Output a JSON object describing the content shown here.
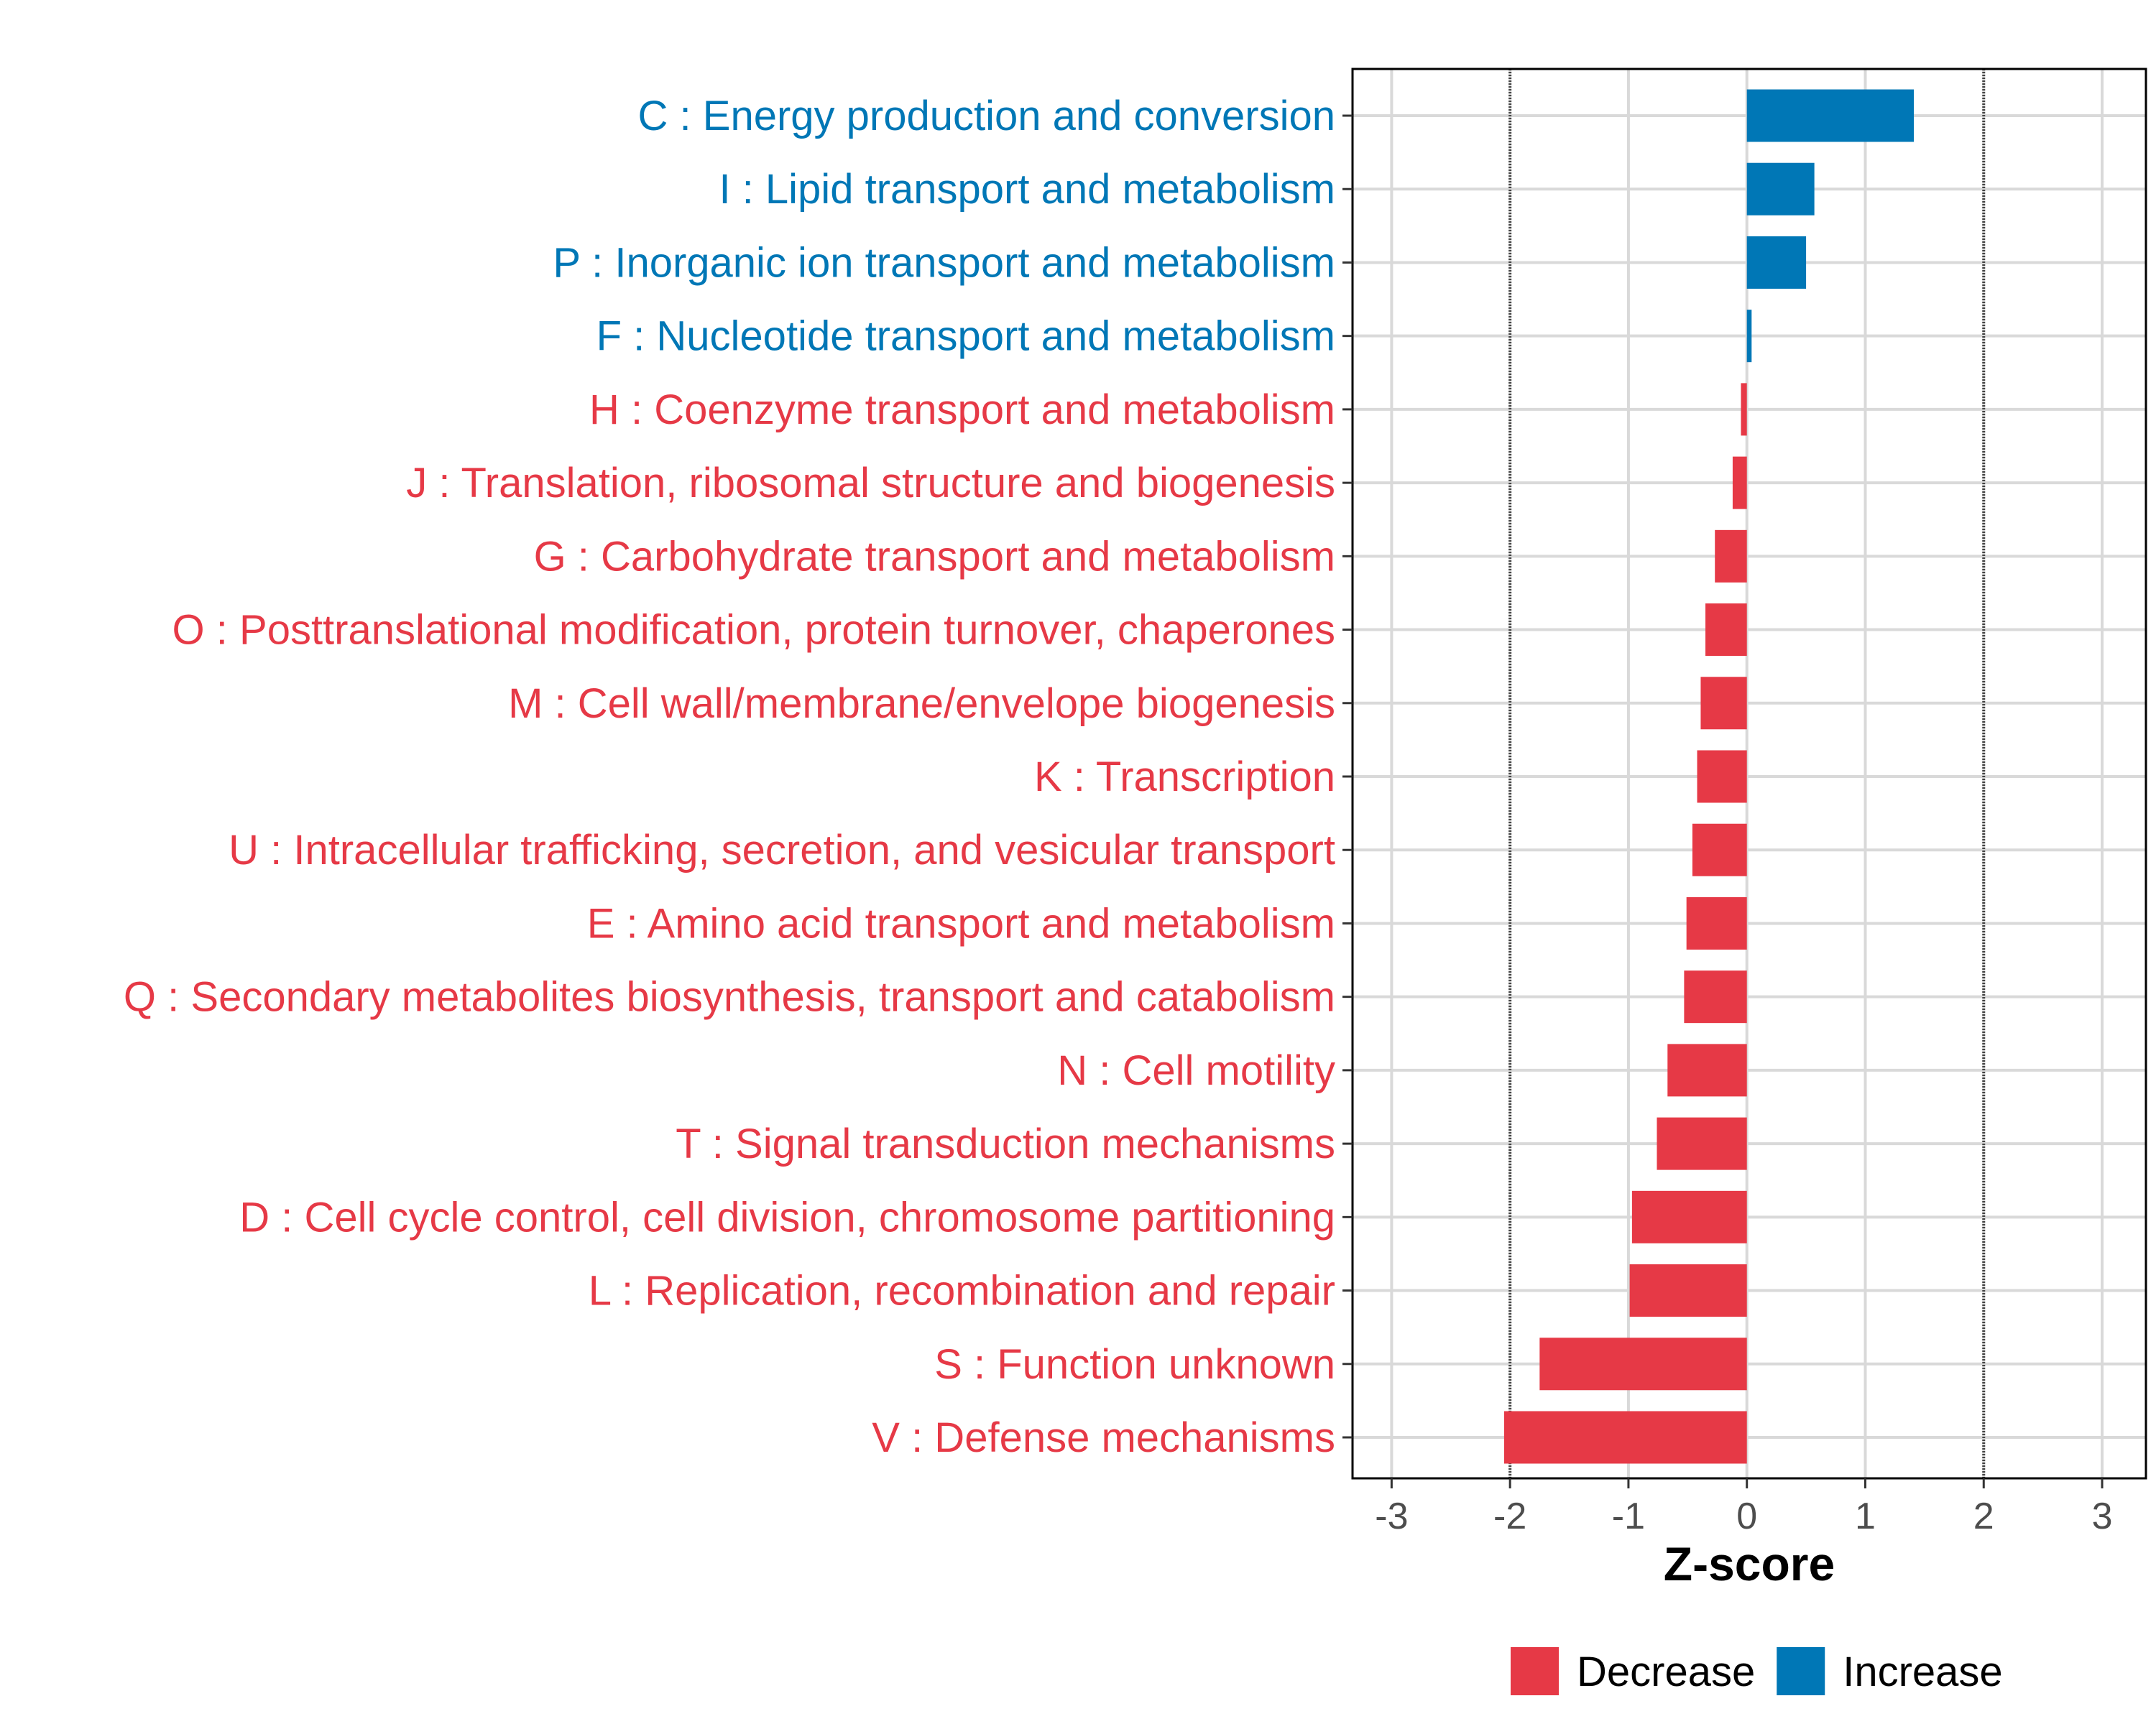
{
  "chart_data": {
    "type": "bar",
    "orientation": "horizontal",
    "title": "",
    "xlabel": "Z-score",
    "ylabel": "",
    "xlim": [
      -3.33,
      3.37
    ],
    "xticks": [
      -3,
      -2,
      -1,
      0,
      1,
      2,
      3
    ],
    "reference_lines": [
      -2,
      2
    ],
    "grid": true,
    "legend_position": "bottom",
    "colors": {
      "Decrease": "#E63946",
      "Increase": "#0077B6"
    },
    "legend": [
      {
        "label": "Decrease",
        "color": "#E63946"
      },
      {
        "label": "Increase",
        "color": "#0077B6"
      }
    ],
    "categories": [
      "C : Energy production and conversion",
      "I : Lipid transport and metabolism",
      "P : Inorganic ion transport and metabolism",
      "F : Nucleotide transport and metabolism",
      "H : Coenzyme transport and metabolism",
      "J : Translation, ribosomal structure and biogenesis",
      "G : Carbohydrate transport and metabolism",
      "O : Posttranslational modification, protein turnover, chaperones",
      "M : Cell wall/membrane/envelope biogenesis",
      "K : Transcription",
      "U : Intracellular trafficking, secretion, and vesicular transport",
      "E : Amino acid transport and metabolism",
      "Q : Secondary metabolites biosynthesis, transport and catabolism",
      "N : Cell motility",
      "T : Signal transduction mechanisms",
      "D : Cell cycle control, cell division, chromosome partitioning",
      "L : Replication, recombination and repair",
      "S : Function unknown",
      "V : Defense mechanisms"
    ],
    "values": [
      1.41,
      0.57,
      0.5,
      0.04,
      -0.05,
      -0.12,
      -0.27,
      -0.35,
      -0.39,
      -0.42,
      -0.46,
      -0.51,
      -0.53,
      -0.67,
      -0.76,
      -0.97,
      -0.99,
      -1.75,
      -2.05
    ]
  }
}
